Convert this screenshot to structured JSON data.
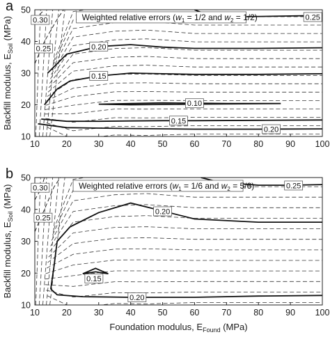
{
  "chart_data": [
    {
      "type": "line",
      "panel_label": "a",
      "title_parts": [
        "Weighted relative errors (",
        "w",
        "1",
        " = 1/2 and ",
        "w",
        "2",
        " = 1/2)"
      ],
      "xlim": [
        10,
        100
      ],
      "ylim": [
        10,
        50
      ],
      "xticks": [
        10,
        20,
        30,
        40,
        50,
        60,
        70,
        80,
        90,
        100
      ],
      "xtick_labels": [
        "10",
        "20",
        "30",
        "40",
        "50",
        "60",
        "70",
        "80",
        "90",
        "100"
      ],
      "yticks": [
        10,
        20,
        30,
        40,
        50
      ],
      "ylabel_parts": [
        "Backfill modulus, E",
        "Soil",
        " (MPa)"
      ],
      "series": [
        {
          "label": "0.25",
          "style": "solid",
          "points": [
            [
              60,
              50
            ],
            [
              65,
              48
            ],
            [
              75,
              47.8
            ],
            [
              100,
              48.2
            ]
          ],
          "label_at": [
            97,
            47.7
          ]
        },
        {
          "label": "0.20",
          "style": "solid",
          "points": [
            [
              14,
              30
            ],
            [
              20,
              36
            ],
            [
              30,
              38.4
            ],
            [
              40,
              39
            ],
            [
              50,
              38.2
            ],
            [
              60,
              37.8
            ],
            [
              80,
              37.8
            ],
            [
              100,
              38
            ]
          ],
          "label_at": [
            30,
            38.4
          ]
        },
        {
          "label": "0.15",
          "style": "solid",
          "points": [
            [
              13,
              20
            ],
            [
              17,
              25
            ],
            [
              21,
              27.5
            ],
            [
              30,
              29.1
            ],
            [
              40,
              30
            ],
            [
              50,
              29.8
            ],
            [
              60,
              29.6
            ],
            [
              80,
              29.6
            ],
            [
              100,
              29.8
            ]
          ],
          "label_at": [
            30,
            29.1
          ]
        },
        {
          "label": "0.10",
          "style": "solid",
          "points": [
            [
              30,
              20.2
            ],
            [
              40,
              20.4
            ],
            [
              50,
              20.6
            ],
            [
              60,
              20.5
            ],
            [
              70,
              20.4
            ],
            [
              87,
              20.4
            ],
            [
              60,
              20.2
            ],
            [
              40,
              20
            ],
            [
              30,
              20.2
            ]
          ],
          "label_at": [
            60,
            20.5
          ]
        },
        {
          "label": "0.15",
          "style": "solid",
          "points": [
            [
              12,
              15.5
            ],
            [
              20,
              14.8
            ],
            [
              30,
              14.8
            ],
            [
              40,
              14.9
            ],
            [
              50,
              15
            ],
            [
              60,
              15
            ],
            [
              80,
              15.1
            ],
            [
              100,
              15.2
            ]
          ],
          "label_at": [
            55,
            15
          ]
        },
        {
          "label": "0.20",
          "style": "solid",
          "points": [
            [
              11,
              14
            ],
            [
              20,
              12.8
            ],
            [
              40,
              12.5
            ],
            [
              60,
              12.3
            ],
            [
              80,
              12.3
            ],
            [
              100,
              12.4
            ]
          ],
          "label_at": [
            84,
            12.3
          ]
        },
        {
          "label": "0.30",
          "style": "dashed",
          "points": [
            [
              10,
              47
            ],
            [
              12,
              49
            ],
            [
              13,
              50
            ]
          ],
          "label_at": [
            11.7,
            46.8
          ]
        },
        {
          "label": "0.25",
          "style": "dashed",
          "points": [
            [
              10,
              33
            ],
            [
              13,
              40
            ],
            [
              17,
              47
            ],
            [
              19,
              50
            ]
          ],
          "label_at": [
            12.7,
            37.8
          ]
        }
      ]
    },
    {
      "type": "line",
      "panel_label": "b",
      "title_parts": [
        "Weighted relative errors (",
        "w",
        "1",
        " = 1/6 and ",
        "w",
        "2",
        " = 5/6)"
      ],
      "xlim": [
        10,
        100
      ],
      "ylim": [
        10,
        50
      ],
      "xticks": [
        10,
        20,
        30,
        40,
        50,
        60,
        70,
        80,
        90,
        100
      ],
      "xtick_labels": [
        "10",
        "20",
        "30",
        "40",
        "50",
        "60",
        "70",
        "80",
        "90",
        "100"
      ],
      "yticks": [
        10,
        20,
        30,
        40,
        50
      ],
      "ylabel_parts": [
        "Backfill modulus, E",
        "Soil",
        " (MPa)"
      ],
      "xlabel_parts": [
        "Foundation modulus, E",
        "Found",
        " (MPa)"
      ],
      "series": [
        {
          "label": "0.25",
          "style": "solid",
          "points": [
            [
              62,
              50
            ],
            [
              68,
              48.5
            ],
            [
              80,
              47.6
            ],
            [
              90,
              47.6
            ],
            [
              100,
              47.8
            ]
          ],
          "label_at": [
            91,
            47.5
          ]
        },
        {
          "label": "0.20",
          "style": "solid",
          "points": [
            [
              15,
              15
            ],
            [
              16,
              22
            ],
            [
              17,
              30
            ],
            [
              21,
              34.5
            ],
            [
              30,
              39
            ],
            [
              40,
              42
            ],
            [
              50,
              39.5
            ],
            [
              60,
              37
            ],
            [
              80,
              36
            ],
            [
              100,
              36
            ]
          ],
          "label_at": [
            50,
            39.4
          ]
        },
        {
          "label": "0.15",
          "style": "solid",
          "points": [
            [
              25,
              19.8
            ],
            [
              29,
              21.5
            ],
            [
              33,
              19.8
            ],
            [
              29,
              20.4
            ],
            [
              25,
              19.8
            ]
          ],
          "label_at": [
            28.5,
            18.3
          ]
        },
        {
          "label": "0.20",
          "style": "solid",
          "points": [
            [
              15,
              15
            ],
            [
              17,
              13.2
            ],
            [
              25,
              12.6
            ],
            [
              40,
              12.4
            ],
            [
              60,
              12.4
            ],
            [
              80,
              12.8
            ],
            [
              100,
              13
            ]
          ],
          "label_at": [
            42,
            12.4
          ]
        },
        {
          "label": "0.30",
          "style": "dashed",
          "points": [
            [
              10,
              43
            ],
            [
              12,
              46.5
            ],
            [
              13,
              50
            ]
          ],
          "label_at": [
            11.7,
            46.8
          ]
        },
        {
          "label": "0.25",
          "style": "dashed",
          "points": [
            [
              10,
              33
            ],
            [
              13,
              40
            ],
            [
              16,
              47
            ],
            [
              18,
              50
            ]
          ],
          "label_at": [
            12.6,
            37.4
          ]
        }
      ]
    }
  ]
}
